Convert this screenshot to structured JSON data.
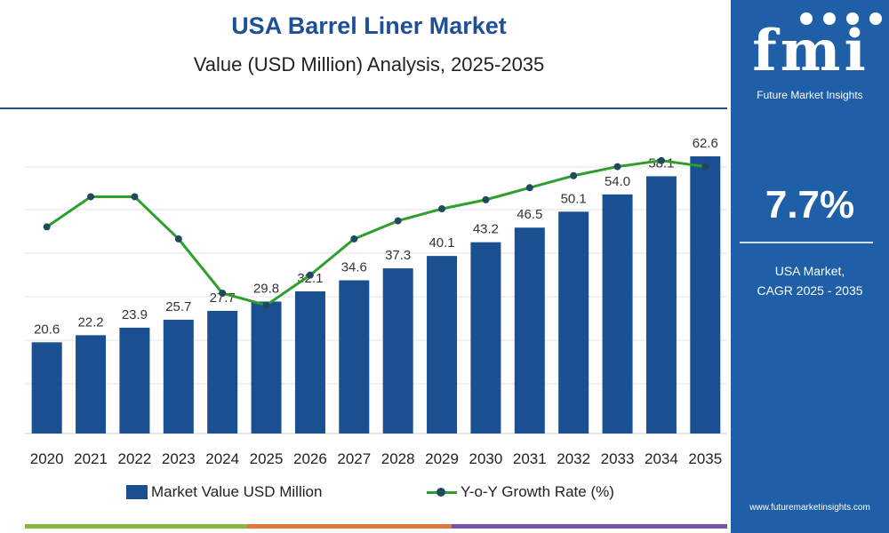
{
  "chart_data": {
    "type": "bar",
    "title": "USA Barrel Liner Market",
    "subtitle": "Value (USD Million) Analysis, 2025-2035",
    "categories": [
      "2020",
      "2021",
      "2022",
      "2023",
      "2024",
      "2025",
      "2026",
      "2027",
      "2028",
      "2029",
      "2030",
      "2031",
      "2032",
      "2033",
      "2034",
      "2035"
    ],
    "series": [
      {
        "name": "Market Value USD Million",
        "type": "bar",
        "color": "#1a4f91",
        "values": [
          20.6,
          22.2,
          23.9,
          25.7,
          27.7,
          29.8,
          32.1,
          34.6,
          37.3,
          40.1,
          43.2,
          46.5,
          50.1,
          54.0,
          58.1,
          62.6
        ]
      },
      {
        "name": "Y-o-Y Growth Rate (%)",
        "type": "line",
        "color": "#2e9f2b",
        "marker_color": "#1f4a5e",
        "values": [
          7.4,
          7.9,
          7.9,
          7.2,
          6.3,
          6.1,
          6.6,
          7.2,
          7.5,
          7.7,
          7.85,
          8.05,
          8.25,
          8.4,
          8.5,
          8.4
        ]
      }
    ],
    "data_labels": [
      "20.6",
      "22.2",
      "23.9",
      "25.7",
      "27.7",
      "29.8",
      "32.1",
      "34.6",
      "37.3",
      "40.1",
      "43.2",
      "46.5",
      "50.1",
      "54.0",
      "58.1",
      "62.6"
    ],
    "ylim": [
      0,
      62.6
    ],
    "growth_ylim": [
      4.0,
      8.6
    ],
    "grid": "horizontal",
    "legend": "bottom"
  },
  "sidebar": {
    "logo_text": "fmi",
    "brand_name": "Future Market Insights",
    "cagr_value": "7.7%",
    "cagr_label_line1": "USA Market,",
    "cagr_label_line2": "CAGR 2025 - 2035",
    "url": "www.futuremarketinsights.com"
  },
  "colors": {
    "title": "#1f4f96",
    "panel": "#1e5fa8",
    "bottom_bar": [
      "#86b83a",
      "#e2773d",
      "#7b53a6"
    ]
  }
}
